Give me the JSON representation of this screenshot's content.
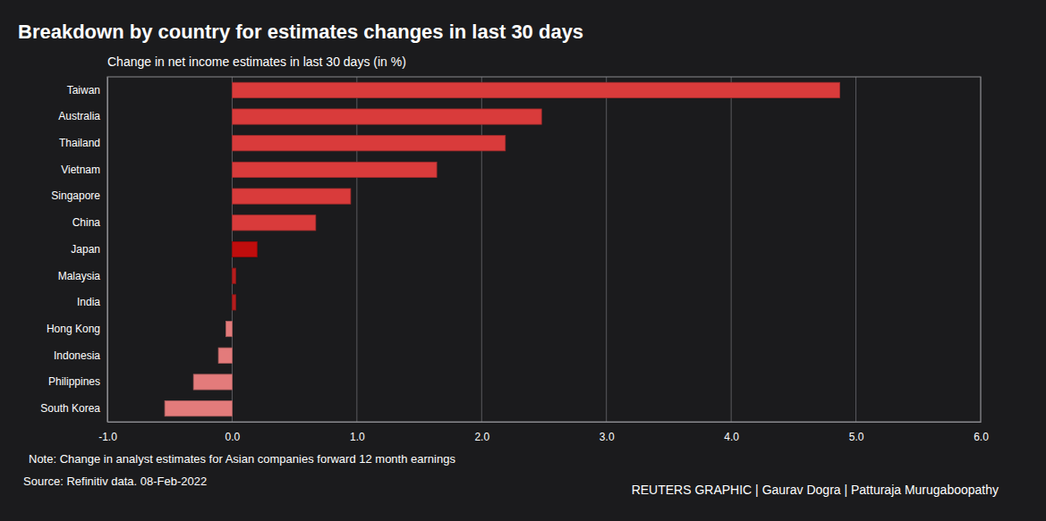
{
  "chart_data": {
    "type": "bar",
    "orientation": "horizontal",
    "title": "Breakdown by country for estimates changes in last 30 days",
    "subtitle": "Change in net income estimates in last 30 days (in %)",
    "annotations": [
      "Note: Change in analyst estimates for Asian companies forward 12 month earnings",
      "Source: Refinitiv data. 08-Feb-2022",
      "REUTERS GRAPHIC | Gaurav Dogra | Patturaja Murugaboopathy"
    ],
    "categories": [
      "Taiwan",
      "Australia",
      "Thailand",
      "Vietnam",
      "Singapore",
      "China",
      "Japan",
      "Malaysia",
      "India",
      "Hong Kong",
      "Indonesia",
      "Philippines",
      "South Korea"
    ],
    "values": [
      4.87,
      2.48,
      2.19,
      1.64,
      0.95,
      0.67,
      0.2,
      0.03,
      0.03,
      -0.05,
      -0.11,
      -0.31,
      -0.54
    ],
    "colors": [
      "#d93b3b",
      "#d93b3b",
      "#d93b3b",
      "#d93b3b",
      "#d93b3b",
      "#d93b3b",
      "#c00d0d",
      "#b51d1d",
      "#b51d1d",
      "#e37b7b",
      "#e37b7b",
      "#e37b7b",
      "#e37b7b"
    ],
    "xlim": [
      -1.0,
      6.0
    ],
    "xticks": [
      {
        "value": -1.0,
        "label": "-1.0"
      },
      {
        "value": 0.0,
        "label": "0.0"
      },
      {
        "value": 1.0,
        "label": "1.0"
      },
      {
        "value": 2.0,
        "label": "2.0"
      },
      {
        "value": 3.0,
        "label": "3.0"
      },
      {
        "value": 4.0,
        "label": "4.0"
      },
      {
        "value": 5.0,
        "label": "5.0"
      },
      {
        "value": 6.0,
        "label": "6.0"
      }
    ],
    "grid": true
  }
}
